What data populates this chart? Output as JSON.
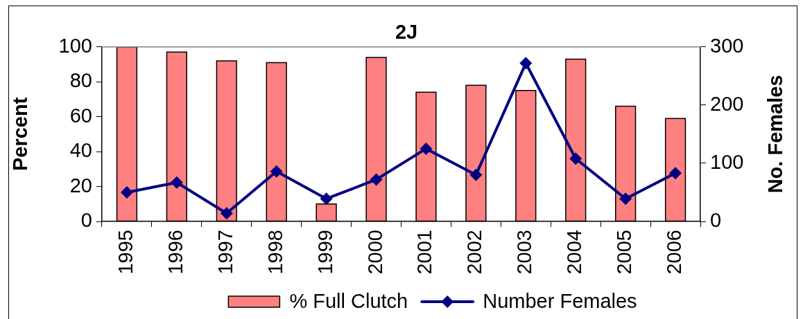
{
  "chart_data": {
    "type": "bar",
    "title": "2J",
    "ylabel": "Percent",
    "y2label": "No. Females",
    "categories": [
      "1995",
      "1996",
      "1997",
      "1998",
      "1999",
      "2000",
      "2001",
      "2002",
      "2003",
      "2004",
      "2005",
      "2006"
    ],
    "series": [
      {
        "name": "% Full Clutch",
        "color": "#ff8080",
        "values": [
          100,
          97,
          92,
          91,
          10,
          94,
          74,
          78,
          75,
          93,
          66,
          59
        ]
      },
      {
        "name": "Number Females",
        "type": "line",
        "axis": "y2",
        "color": "#000080",
        "values": [
          50,
          67,
          14,
          86,
          39,
          72,
          125,
          80,
          272,
          108,
          39,
          83
        ]
      }
    ],
    "ylim": [
      0,
      100
    ],
    "yticks": [
      0,
      20,
      40,
      60,
      80,
      100
    ],
    "y2lim": [
      0,
      300
    ],
    "y2ticks": [
      0,
      100,
      200,
      300
    ],
    "grid": false,
    "legend": "bottom",
    "marker": "diamond"
  }
}
